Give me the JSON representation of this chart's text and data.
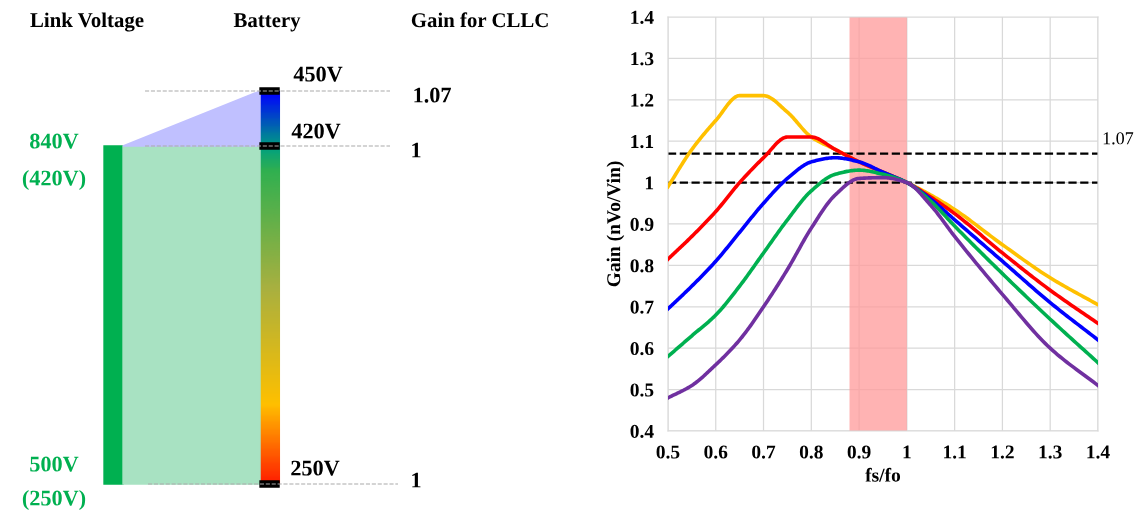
{
  "chart_data": [
    {
      "type": "other",
      "annotations": [
        "Link Voltage",
        "Battery",
        "Gain for CLLC",
        "840V",
        "(420V)",
        "500V",
        "(250V)",
        "450V",
        "420V",
        "250V",
        "1.07",
        "1",
        "1"
      ]
    },
    {
      "type": "line",
      "xlabel": "fs/fo",
      "ylabel": "Gain (nVo/Vin)",
      "x": [
        0.5,
        0.55,
        0.6,
        0.65,
        0.7,
        0.75,
        0.8,
        0.85,
        0.9,
        0.95,
        1.0,
        1.05,
        1.1,
        1.2,
        1.3,
        1.4
      ],
      "series": [
        {
          "color": "#ffc000",
          "values": [
            0.99,
            1.08,
            1.15,
            1.21,
            1.21,
            1.17,
            1.11,
            1.08,
            1.05,
            1.025,
            1.0,
            0.97,
            0.935,
            0.85,
            0.77,
            0.705
          ]
        },
        {
          "color": "#ff0000",
          "values": [
            0.815,
            0.87,
            0.93,
            1.0,
            1.06,
            1.11,
            1.11,
            1.08,
            1.05,
            1.025,
            1.0,
            0.965,
            0.925,
            0.83,
            0.74,
            0.66
          ]
        },
        {
          "color": "#0000ff",
          "values": [
            0.695,
            0.75,
            0.81,
            0.88,
            0.95,
            1.01,
            1.05,
            1.06,
            1.05,
            1.025,
            1.0,
            0.96,
            0.91,
            0.81,
            0.71,
            0.62
          ]
        },
        {
          "color": "#00b050",
          "values": [
            0.58,
            0.63,
            0.68,
            0.75,
            0.83,
            0.91,
            0.98,
            1.02,
            1.03,
            1.02,
            1.0,
            0.955,
            0.895,
            0.78,
            0.67,
            0.565
          ]
        },
        {
          "color": "#7030a0",
          "values": [
            0.48,
            0.51,
            0.56,
            0.62,
            0.7,
            0.79,
            0.89,
            0.97,
            1.01,
            1.012,
            1.0,
            0.945,
            0.87,
            0.73,
            0.6,
            0.51
          ]
        }
      ],
      "xlim": [
        0.5,
        1.4
      ],
      "xticks": [
        0.5,
        0.6,
        0.7,
        0.8,
        0.9,
        1,
        1.1,
        1.2,
        1.3,
        1.4
      ],
      "ylim": [
        0.4,
        1.4
      ],
      "yticks": [
        0.4,
        0.5,
        0.6,
        0.7,
        0.8,
        0.9,
        1,
        1.1,
        1.2,
        1.3,
        1.4
      ],
      "grid": true,
      "marker": "none",
      "line_style": "solid",
      "ref_lines": [
        {
          "axis": "y",
          "value": 1.07,
          "label": "1.07",
          "color": "#000000",
          "line_style": "dashed"
        },
        {
          "axis": "y",
          "value": 1,
          "color": "#000000",
          "line_style": "dashed"
        }
      ],
      "bands": [
        {
          "axis": "x",
          "from": 0.88,
          "to": 1.0,
          "color": "#ff9999"
        }
      ]
    }
  ]
}
